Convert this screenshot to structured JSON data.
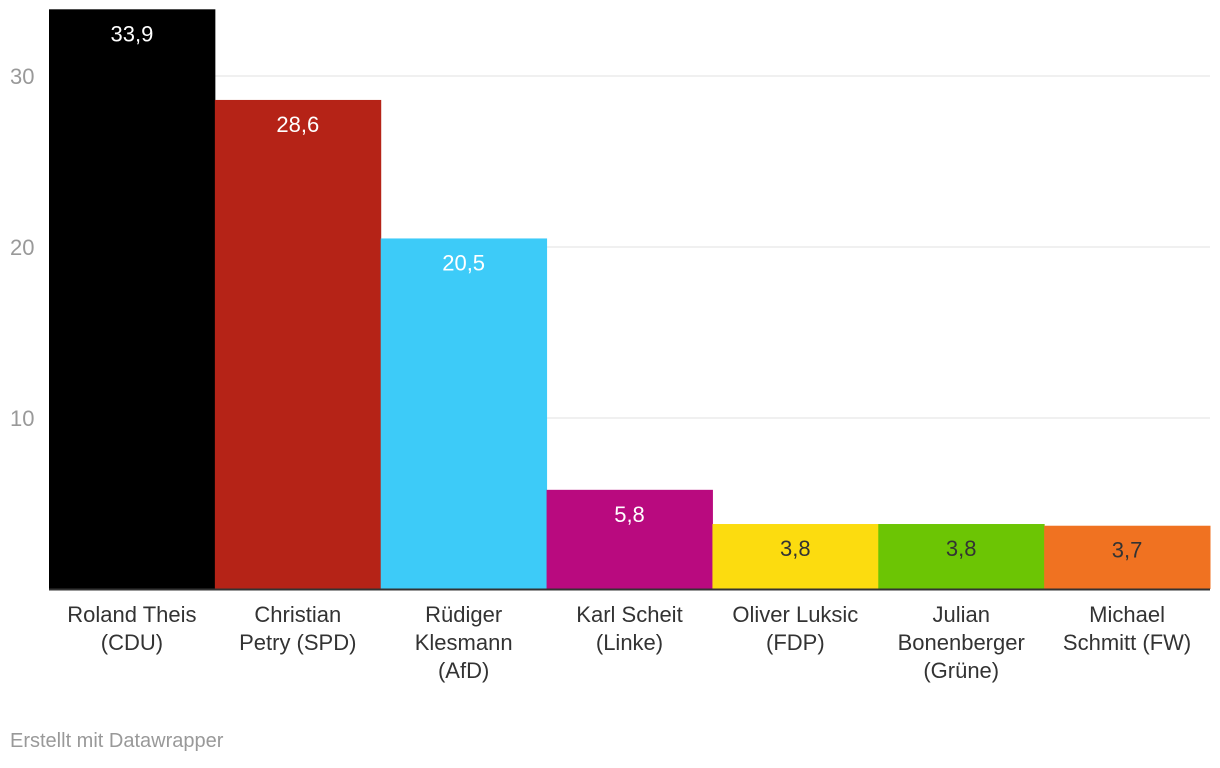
{
  "chart_data": {
    "type": "bar",
    "categories": [
      [
        "Roland Theis",
        "(CDU)"
      ],
      [
        "Christian",
        "Petry (SPD)"
      ],
      [
        "Rüdiger",
        "Klesmann",
        "(AfD)"
      ],
      [
        "Karl Scheit",
        "(Linke)"
      ],
      [
        "Oliver Luksic",
        "(FDP)"
      ],
      [
        "Julian",
        "Bonenberger",
        "(Grüne)"
      ],
      [
        "Michael",
        "Schmitt (FW)"
      ]
    ],
    "values": [
      33.9,
      28.6,
      20.5,
      5.8,
      3.8,
      3.8,
      3.7
    ],
    "value_labels": [
      "33,9",
      "28,6",
      "20,5",
      "5,8",
      "3,8",
      "3,8",
      "3,7"
    ],
    "colors": [
      "#000000",
      "#b52317",
      "#3dcbf8",
      "#b90a7f",
      "#fcdc0f",
      "#6cc504",
      "#f07221"
    ],
    "yticks": [
      10,
      20,
      30
    ],
    "ylim": [
      0,
      34
    ],
    "grid": true,
    "title": "",
    "xlabel": "",
    "ylabel": ""
  },
  "footer": {
    "credit": "Erstellt mit Datawrapper"
  }
}
